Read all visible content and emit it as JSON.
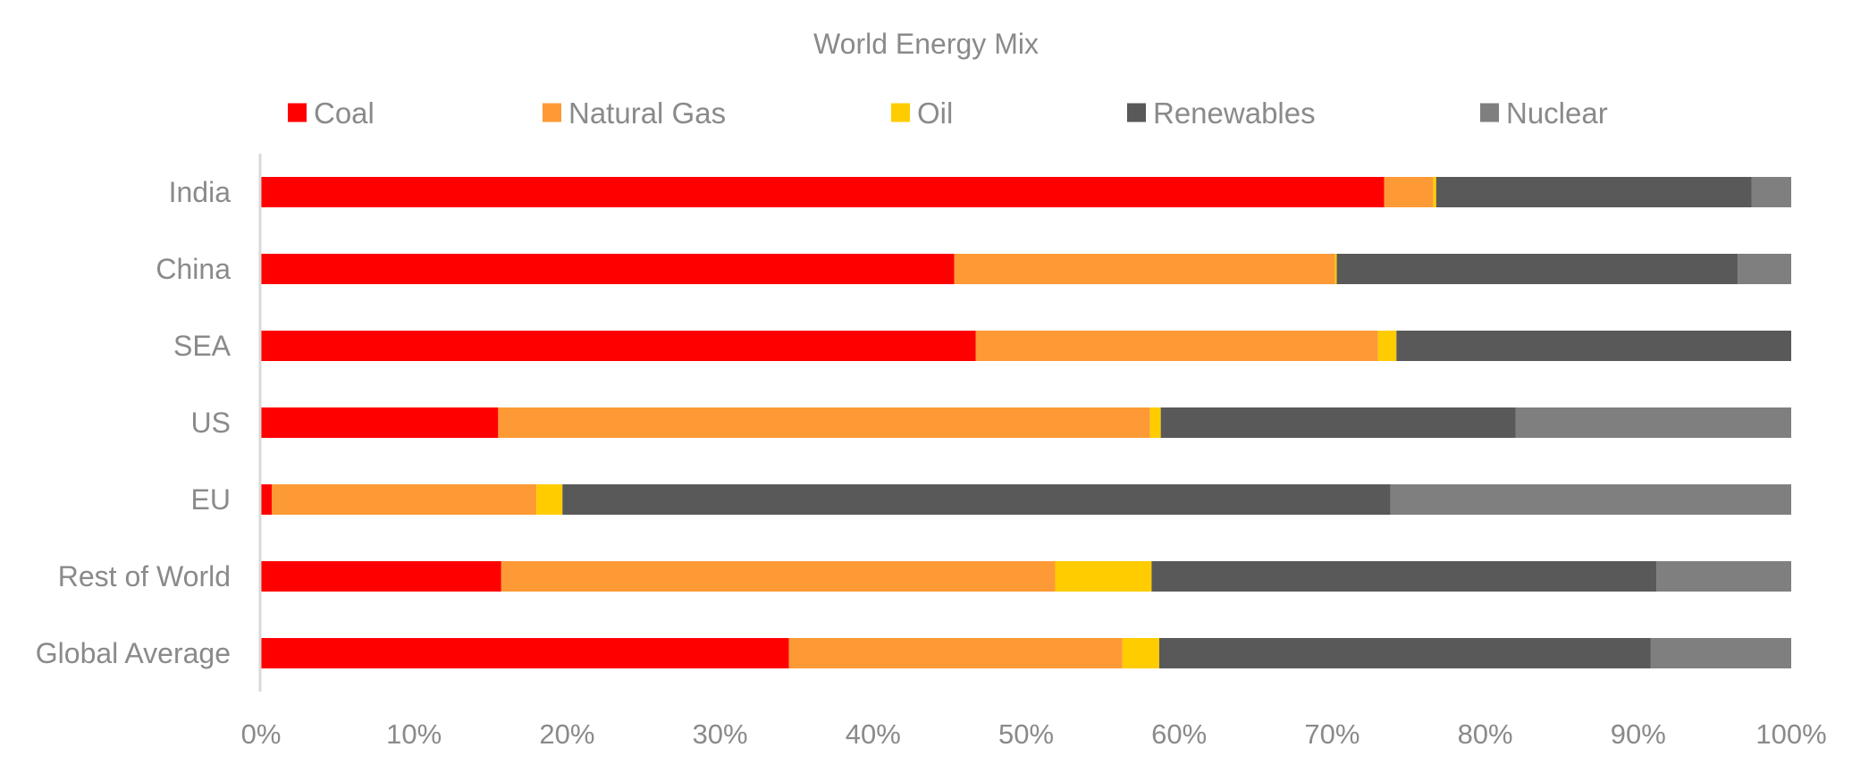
{
  "chart_data": {
    "type": "bar",
    "orientation": "horizontal",
    "stacked": true,
    "title": "World Energy Mix",
    "xlabel": "",
    "ylabel": "",
    "xlim": [
      0,
      100
    ],
    "x_ticks": [
      "0%",
      "10%",
      "20%",
      "30%",
      "40%",
      "50%",
      "60%",
      "70%",
      "80%",
      "90%",
      "100%"
    ],
    "grid": false,
    "legend_position": "top",
    "categories": [
      "India",
      "China",
      "SEA",
      "US",
      "EU",
      "Rest of World",
      "Global Average"
    ],
    "series": [
      {
        "name": "Coal",
        "color": "#ff0000",
        "values": [
          73.4,
          45.3,
          46.7,
          15.5,
          0.7,
          15.7,
          34.5
        ]
      },
      {
        "name": "Natural Gas",
        "color": "#fd9a36",
        "values": [
          3.2,
          24.9,
          26.3,
          42.6,
          17.3,
          36.2,
          21.8
        ]
      },
      {
        "name": "Oil",
        "color": "#ffcc00",
        "values": [
          0.2,
          0.1,
          1.2,
          0.7,
          1.7,
          6.3,
          2.4
        ]
      },
      {
        "name": "Renewables",
        "color": "#595959",
        "values": [
          20.6,
          26.2,
          25.8,
          23.2,
          54.1,
          33.0,
          32.1
        ]
      },
      {
        "name": "Nuclear",
        "color": "#7f7f7f",
        "values": [
          2.6,
          3.5,
          0.0,
          18.0,
          26.2,
          8.8,
          9.2
        ]
      }
    ]
  }
}
